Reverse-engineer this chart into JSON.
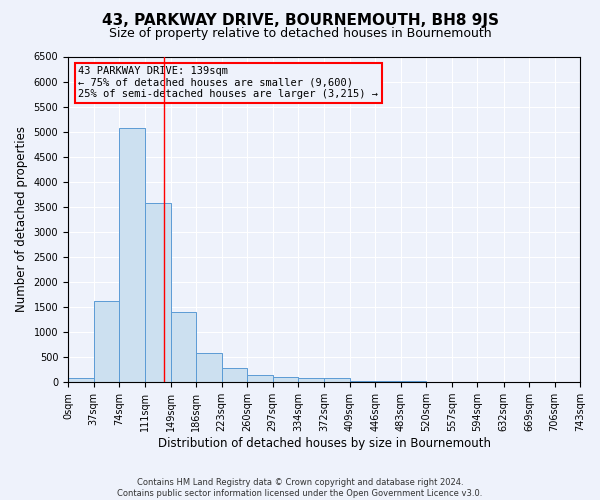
{
  "title": "43, PARKWAY DRIVE, BOURNEMOUTH, BH8 9JS",
  "subtitle": "Size of property relative to detached houses in Bournemouth",
  "xlabel": "Distribution of detached houses by size in Bournemouth",
  "ylabel": "Number of detached properties",
  "annotation_title": "43 PARKWAY DRIVE: 139sqm",
  "annotation_line1": "← 75% of detached houses are smaller (9,600)",
  "annotation_line2": "25% of semi-detached houses are larger (3,215) →",
  "footer_line1": "Contains HM Land Registry data © Crown copyright and database right 2024.",
  "footer_line2": "Contains public sector information licensed under the Open Government Licence v3.0.",
  "bin_edges": [
    0,
    37,
    74,
    111,
    149,
    186,
    223,
    260,
    297,
    334,
    372,
    409,
    446,
    483,
    520,
    557,
    594,
    632,
    669,
    706,
    743
  ],
  "bar_heights": [
    75,
    1625,
    5075,
    3575,
    1400,
    575,
    285,
    150,
    100,
    75,
    75,
    25,
    25,
    25,
    10,
    10,
    10,
    5,
    5,
    5
  ],
  "bar_face_color": "#cce0f0",
  "bar_edge_color": "#5b9bd5",
  "vline_x": 139,
  "vline_color": "red",
  "ylim": [
    0,
    6500
  ],
  "yticks": [
    0,
    500,
    1000,
    1500,
    2000,
    2500,
    3000,
    3500,
    4000,
    4500,
    5000,
    5500,
    6000,
    6500
  ],
  "annotation_box_color": "red",
  "bg_color": "#eef2fb",
  "grid_color": "white",
  "title_fontsize": 11,
  "subtitle_fontsize": 9,
  "axis_label_fontsize": 8.5,
  "tick_fontsize": 7,
  "footer_fontsize": 6
}
